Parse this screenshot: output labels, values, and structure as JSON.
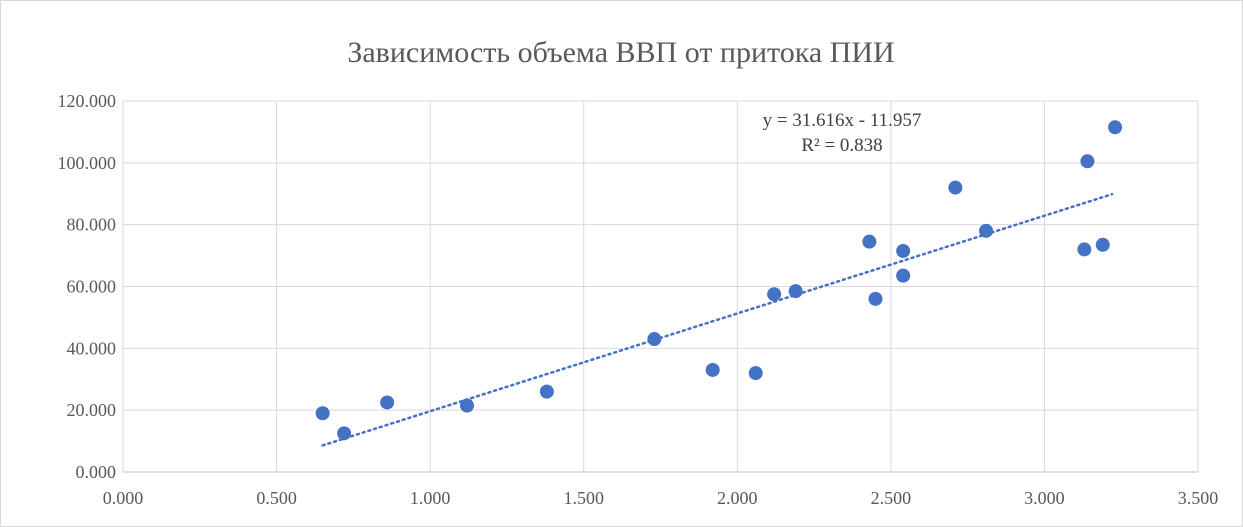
{
  "chart_data": {
    "type": "scatter",
    "title": "Зависимость объема ВВП от притока ПИИ",
    "xlabel": "",
    "ylabel": "",
    "xlim": [
      0,
      3.5
    ],
    "ylim": [
      0,
      120
    ],
    "x_ticks": [
      "0.000",
      "0.500",
      "1.000",
      "1.500",
      "2.000",
      "2.500",
      "3.000",
      "3.500"
    ],
    "y_ticks": [
      "0.000",
      "20.000",
      "40.000",
      "60.000",
      "80.000",
      "100.000",
      "120.000"
    ],
    "grid": true,
    "legend": "none",
    "point_color": "#4472C4",
    "trendline": {
      "type": "linear",
      "slope": 31.616,
      "intercept": -11.957,
      "x_range": [
        0.65,
        3.22
      ],
      "style": "dotted",
      "color": "#4472C4",
      "equation_label": "y = 31.616x - 11.957",
      "r2_label": "R² = 0.838"
    },
    "series": [
      {
        "points": [
          {
            "x": 0.65,
            "y": 19.0
          },
          {
            "x": 0.72,
            "y": 12.5
          },
          {
            "x": 0.86,
            "y": 22.5
          },
          {
            "x": 1.12,
            "y": 21.5
          },
          {
            "x": 1.38,
            "y": 26.0
          },
          {
            "x": 1.73,
            "y": 43.0
          },
          {
            "x": 1.92,
            "y": 33.0
          },
          {
            "x": 2.06,
            "y": 32.0
          },
          {
            "x": 2.12,
            "y": 57.5
          },
          {
            "x": 2.19,
            "y": 58.5
          },
          {
            "x": 2.43,
            "y": 74.5
          },
          {
            "x": 2.45,
            "y": 56.0
          },
          {
            "x": 2.54,
            "y": 71.5
          },
          {
            "x": 2.54,
            "y": 63.5
          },
          {
            "x": 2.71,
            "y": 92.0
          },
          {
            "x": 2.81,
            "y": 78.0
          },
          {
            "x": 3.13,
            "y": 72.0
          },
          {
            "x": 3.14,
            "y": 100.5
          },
          {
            "x": 3.19,
            "y": 73.5
          },
          {
            "x": 3.23,
            "y": 111.5
          }
        ]
      }
    ]
  }
}
